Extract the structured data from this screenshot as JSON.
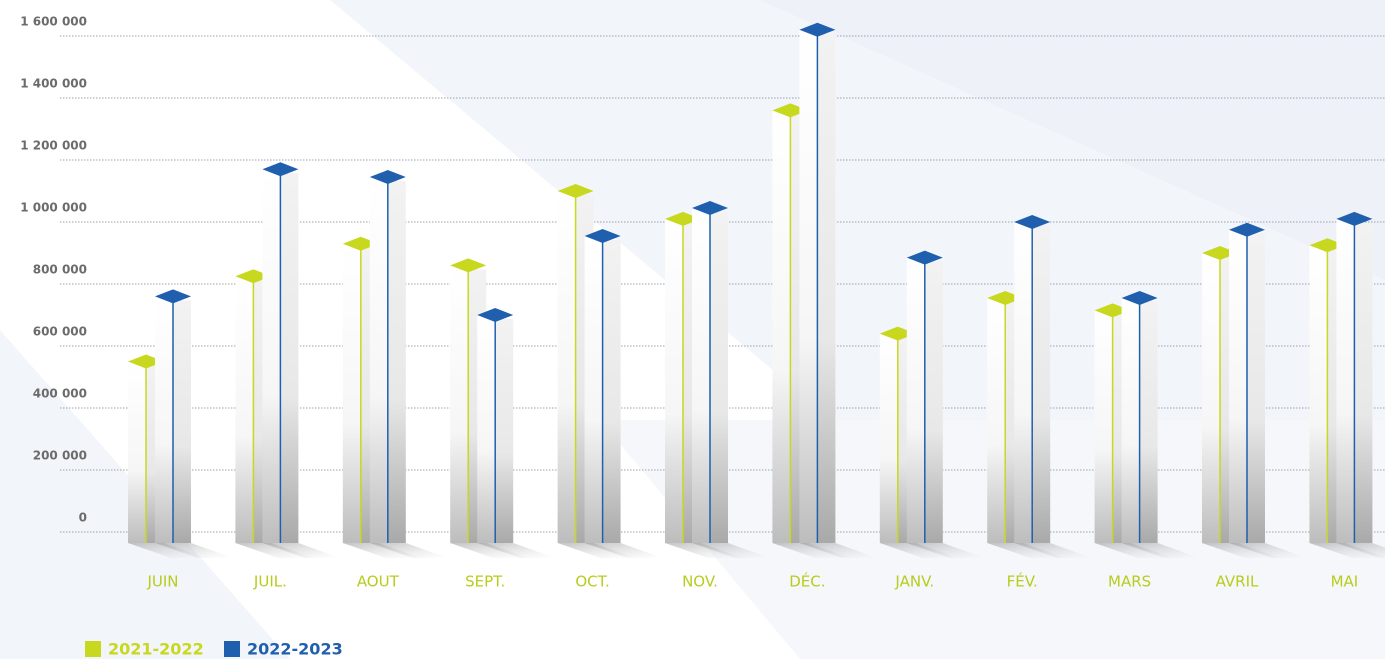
{
  "chart_data": {
    "type": "bar",
    "categories": [
      "JUIN",
      "JUIL.",
      "AOUT",
      "SEPT.",
      "OCT.",
      "NOV.",
      "DÉC.",
      "JANV.",
      "FÉV.",
      "MARS",
      "AVRIL",
      "MAI"
    ],
    "series": [
      {
        "name": "2021-2022",
        "color": "#c8d81e",
        "values": [
          550000,
          825000,
          930000,
          860000,
          1100000,
          1010000,
          1360000,
          640000,
          755000,
          715000,
          900000,
          925000
        ]
      },
      {
        "name": "2022-2023",
        "color": "#1f5fae",
        "values": [
          760000,
          1170000,
          1145000,
          700000,
          955000,
          1045000,
          1620000,
          885000,
          1000000,
          755000,
          975000,
          1010000
        ]
      }
    ],
    "ylim": [
      0,
      1600000
    ],
    "yticks": [
      {
        "value": 0,
        "label": "0"
      },
      {
        "value": 200000,
        "label": "200 000"
      },
      {
        "value": 400000,
        "label": "400 000"
      },
      {
        "value": 600000,
        "label": "600 000"
      },
      {
        "value": 800000,
        "label": "800 000"
      },
      {
        "value": 1000000,
        "label": "1 000 000"
      },
      {
        "value": 1200000,
        "label": "1 200 000"
      },
      {
        "value": 1400000,
        "label": "1 400 000"
      },
      {
        "value": 1600000,
        "label": "1 600 000"
      }
    ],
    "grid": true
  }
}
